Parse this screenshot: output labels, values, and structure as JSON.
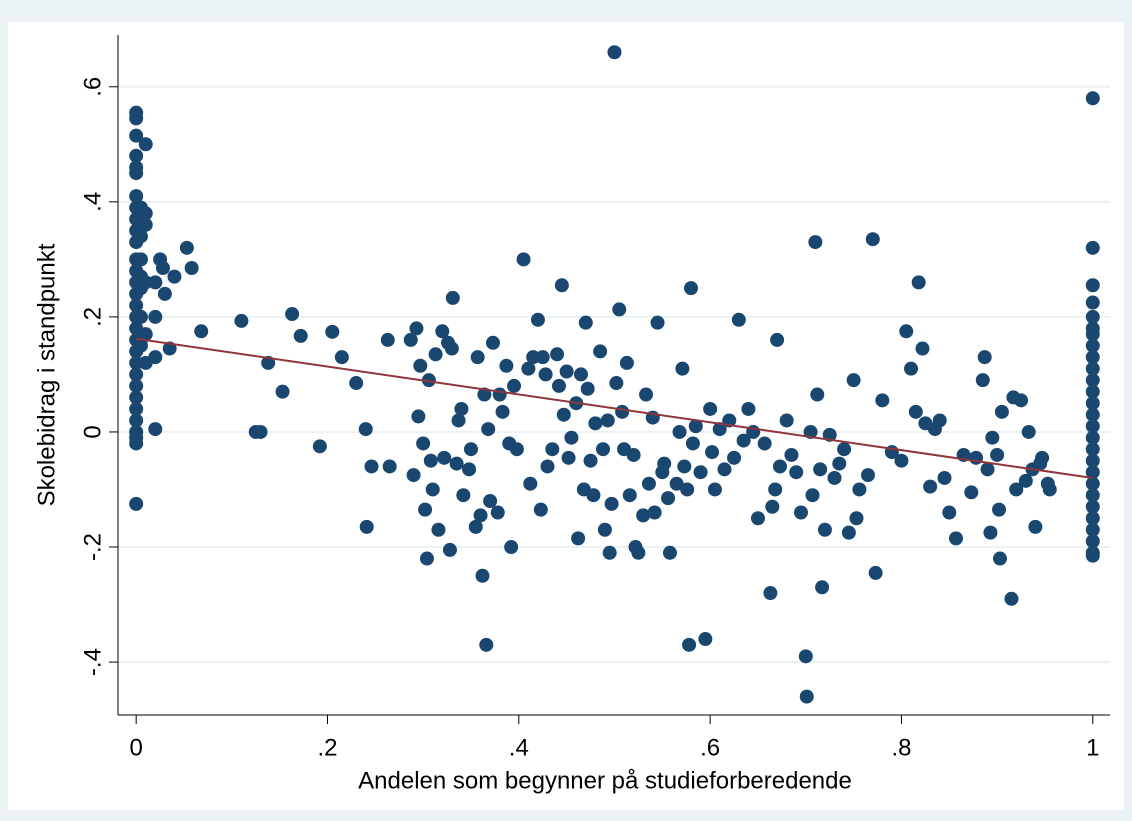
{
  "chart_data": {
    "type": "scatter",
    "x_label": "Andelen som begynner på studieforberedende",
    "y_label": "Skolebidrag i standpunkt",
    "xlim": [
      -0.019,
      1.018
    ],
    "ylim": [
      -0.492,
      0.69
    ],
    "xticks": [
      0,
      {
        "value": 0.2,
        "label": ".2"
      },
      {
        "value": 0.4,
        "label": ".4"
      },
      {
        "value": 0.6,
        "label": ".6"
      },
      {
        "value": 0.8,
        "label": ".8"
      },
      1
    ],
    "yticks": [
      {
        "value": -0.4,
        "label": "-.4"
      },
      {
        "value": -0.2,
        "label": "-.2"
      },
      0,
      {
        "value": 0.2,
        "label": ".2"
      },
      {
        "value": 0.4,
        "label": ".4"
      },
      {
        "value": 0.6,
        "label": ".6"
      }
    ],
    "grid": true,
    "series": [
      {
        "type": "scatter",
        "color": "#1a476f",
        "x": [
          0,
          0,
          0,
          0,
          0,
          0,
          0,
          0,
          0,
          0,
          0,
          0,
          0,
          0,
          0,
          0,
          0,
          0,
          0,
          0,
          0,
          0,
          0,
          0,
          0,
          0,
          0,
          0,
          0,
          0,
          0.005,
          0.005,
          0.005,
          0.005,
          0.005,
          0.005,
          0.005,
          0.005,
          0.005,
          0.01,
          0.01,
          0.01,
          0.01,
          0.01,
          0.01,
          0.02,
          0.02,
          0.02,
          0.02,
          0.025,
          0.028,
          0.03,
          0.035,
          0.04,
          0.053,
          0.058,
          0.068,
          0.11,
          0.125,
          0.13,
          0.138,
          0.153,
          0.163,
          0.172,
          0.192,
          0.205,
          0.215,
          0.23,
          0.24,
          0.241,
          0.246,
          0.263,
          0.265,
          0.287,
          0.29,
          0.293,
          0.295,
          0.297,
          0.3,
          0.302,
          0.304,
          0.306,
          0.308,
          0.31,
          0.313,
          0.316,
          0.32,
          0.322,
          0.326,
          0.328,
          0.33,
          0.331,
          0.335,
          0.337,
          0.34,
          0.342,
          0.348,
          0.35,
          0.355,
          0.357,
          0.36,
          0.362,
          0.364,
          0.366,
          0.368,
          0.37,
          0.373,
          0.378,
          0.38,
          0.383,
          0.387,
          0.39,
          0.392,
          0.395,
          0.398,
          0.405,
          0.41,
          0.412,
          0.415,
          0.42,
          0.423,
          0.425,
          0.428,
          0.43,
          0.435,
          0.44,
          0.442,
          0.445,
          0.447,
          0.45,
          0.452,
          0.455,
          0.46,
          0.462,
          0.465,
          0.468,
          0.47,
          0.472,
          0.475,
          0.478,
          0.48,
          0.485,
          0.488,
          0.49,
          0.493,
          0.495,
          0.497,
          0.5,
          0.502,
          0.505,
          0.508,
          0.51,
          0.513,
          0.516,
          0.52,
          0.522,
          0.525,
          0.53,
          0.533,
          0.536,
          0.54,
          0.542,
          0.545,
          0.55,
          0.552,
          0.556,
          0.558,
          0.565,
          0.568,
          0.571,
          0.573,
          0.576,
          0.578,
          0.58,
          0.582,
          0.585,
          0.59,
          0.595,
          0.6,
          0.602,
          0.605,
          0.61,
          0.615,
          0.62,
          0.625,
          0.63,
          0.635,
          0.64,
          0.645,
          0.65,
          0.657,
          0.663,
          0.665,
          0.668,
          0.67,
          0.673,
          0.68,
          0.685,
          0.69,
          0.695,
          0.7,
          0.701,
          0.705,
          0.707,
          0.71,
          0.712,
          0.715,
          0.717,
          0.72,
          0.725,
          0.73,
          0.735,
          0.74,
          0.745,
          0.75,
          0.753,
          0.756,
          0.765,
          0.77,
          0.773,
          0.78,
          0.79,
          0.8,
          0.805,
          0.81,
          0.815,
          0.818,
          0.822,
          0.825,
          0.83,
          0.835,
          0.84,
          0.845,
          0.85,
          0.857,
          0.865,
          0.873,
          0.878,
          0.885,
          0.887,
          0.89,
          0.893,
          0.895,
          0.9,
          0.902,
          0.903,
          0.905,
          0.915,
          0.917,
          0.92,
          0.925,
          0.93,
          0.933,
          0.937,
          0.94,
          0.945,
          0.947,
          0.953,
          0.955,
          1,
          1,
          1,
          1,
          1,
          1,
          1,
          1,
          1,
          1,
          1,
          1,
          1,
          1,
          1,
          1,
          1,
          1,
          1,
          1,
          1,
          1,
          1,
          1,
          1,
          1,
          1
        ],
        "values": [
          0.555,
          0.545,
          0.515,
          0.48,
          0.46,
          0.45,
          0.41,
          0.39,
          0.37,
          0.35,
          0.33,
          0.3,
          0.28,
          0.26,
          0.24,
          0.22,
          0.2,
          0.18,
          0.16,
          0.14,
          0.12,
          0.1,
          0.08,
          0.06,
          0.04,
          0.02,
          0,
          -0.01,
          -0.02,
          -0.125,
          0.39,
          0.37,
          0.34,
          0.3,
          0.27,
          0.25,
          0.2,
          0.16,
          0.15,
          0.5,
          0.38,
          0.36,
          0.26,
          0.17,
          0.12,
          0.005,
          0.26,
          0.2,
          0.13,
          0.3,
          0.285,
          0.24,
          0.145,
          0.27,
          0.32,
          0.285,
          0.175,
          0.193,
          0,
          0,
          0.12,
          0.07,
          0.205,
          0.167,
          -0.025,
          0.174,
          0.13,
          0.085,
          0.005,
          -0.165,
          -0.06,
          0.16,
          -0.06,
          0.16,
          -0.075,
          0.18,
          0.027,
          0.115,
          -0.02,
          -0.135,
          -0.22,
          0.09,
          -0.05,
          -0.1,
          0.135,
          -0.17,
          0.175,
          -0.045,
          0.155,
          -0.205,
          0.145,
          0.233,
          -0.055,
          0.02,
          0.04,
          -0.11,
          -0.065,
          -0.03,
          -0.165,
          0.13,
          -0.145,
          -0.25,
          0.065,
          -0.37,
          0.005,
          -0.12,
          0.155,
          -0.14,
          0.065,
          0.035,
          0.115,
          -0.02,
          -0.2,
          0.08,
          -0.03,
          0.3,
          0.11,
          -0.09,
          0.13,
          0.195,
          -0.135,
          0.13,
          0.1,
          -0.06,
          -0.03,
          0.135,
          0.08,
          0.255,
          0.03,
          0.105,
          -0.045,
          -0.01,
          0.05,
          -0.185,
          0.1,
          -0.1,
          0.19,
          0.075,
          -0.05,
          -0.11,
          0.015,
          0.14,
          -0.03,
          -0.17,
          0.02,
          -0.21,
          -0.125,
          0.66,
          0.085,
          0.213,
          0.035,
          -0.03,
          0.12,
          -0.11,
          -0.04,
          -0.2,
          -0.21,
          -0.145,
          0.065,
          -0.09,
          0.025,
          -0.14,
          0.19,
          -0.07,
          -0.055,
          -0.115,
          -0.21,
          -0.09,
          0,
          0.11,
          -0.06,
          -0.1,
          -0.37,
          0.25,
          -0.02,
          0.01,
          -0.07,
          -0.36,
          0.04,
          -0.035,
          -0.1,
          0.005,
          -0.065,
          0.02,
          -0.045,
          0.195,
          -0.015,
          0.04,
          0,
          -0.15,
          -0.02,
          -0.28,
          -0.13,
          -0.1,
          0.16,
          -0.06,
          0.02,
          -0.04,
          -0.07,
          -0.14,
          -0.39,
          -0.46,
          0,
          -0.11,
          0.33,
          0.065,
          -0.065,
          -0.27,
          -0.17,
          -0.005,
          -0.08,
          -0.055,
          -0.03,
          -0.175,
          0.09,
          -0.15,
          -0.1,
          -0.075,
          0.335,
          -0.245,
          0.055,
          -0.035,
          -0.05,
          0.175,
          0.11,
          0.035,
          0.26,
          0.145,
          0.015,
          -0.095,
          0.005,
          0.02,
          -0.08,
          -0.14,
          -0.185,
          -0.04,
          -0.105,
          -0.045,
          0.09,
          0.13,
          -0.065,
          -0.175,
          -0.01,
          -0.04,
          -0.135,
          -0.22,
          0.035,
          -0.29,
          0.06,
          -0.1,
          0.055,
          -0.085,
          0,
          -0.065,
          -0.165,
          -0.055,
          -0.045,
          -0.09,
          -0.1,
          0.58,
          0.32,
          0.255,
          0.225,
          0.2,
          0.18,
          0.17,
          0.15,
          0.13,
          0.11,
          0.09,
          0.07,
          0.05,
          0.03,
          0.01,
          -0.01,
          -0.03,
          -0.05,
          -0.07,
          -0.09,
          -0.11,
          -0.13,
          -0.15,
          -0.17,
          -0.19,
          -0.21,
          -0.215
        ]
      },
      {
        "type": "line",
        "color": "#90353b",
        "x": [
          0,
          1
        ],
        "values": [
          0.162,
          -0.08
        ]
      }
    ]
  }
}
